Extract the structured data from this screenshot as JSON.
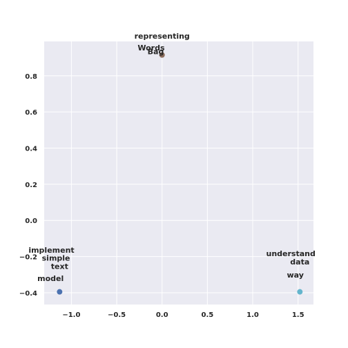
{
  "chart_data": {
    "type": "scatter",
    "title": "",
    "xlabel": "",
    "ylabel": "",
    "xlim": [
      -1.3,
      1.67
    ],
    "ylim": [
      -0.465,
      0.99
    ],
    "x_ticks": [
      -1.0,
      -0.5,
      0.0,
      0.5,
      1.0,
      1.5
    ],
    "y_ticks": [
      -0.4,
      -0.2,
      0.0,
      0.2,
      0.4,
      0.6,
      0.8
    ],
    "x_tick_labels": [
      "−1.0",
      "−0.5",
      "0.0",
      "0.5",
      "1.0",
      "1.5"
    ],
    "y_tick_labels": [
      "−0.4",
      "−0.2",
      "0.0",
      "0.2",
      "0.4",
      "0.6",
      "0.8"
    ],
    "grid": true,
    "background_color": "#eaeaf2",
    "grid_color": "#ffffff",
    "points": [
      {
        "x": -1.13,
        "y": -0.395,
        "color": "#4c72b0"
      },
      {
        "x": 0.0,
        "y": 0.915,
        "color": "#8c6d5c"
      },
      {
        "x": 1.52,
        "y": -0.395,
        "color": "#64b5cd"
      }
    ],
    "annotations": [
      {
        "text": "representing",
        "x": 0.0,
        "y": 1.02
      },
      {
        "text": "Words",
        "x": -0.12,
        "y": 0.955
      },
      {
        "text": "Bag",
        "x": -0.07,
        "y": 0.935
      },
      {
        "text": "implement",
        "x": -1.22,
        "y": -0.163
      },
      {
        "text": "simple",
        "x": -1.17,
        "y": -0.208
      },
      {
        "text": "text",
        "x": -1.13,
        "y": -0.253
      },
      {
        "text": "model",
        "x": -1.23,
        "y": -0.32
      },
      {
        "text": "understand",
        "x": 1.42,
        "y": -0.183
      },
      {
        "text": "data",
        "x": 1.52,
        "y": -0.228
      },
      {
        "text": "way",
        "x": 1.47,
        "y": -0.3
      }
    ]
  }
}
